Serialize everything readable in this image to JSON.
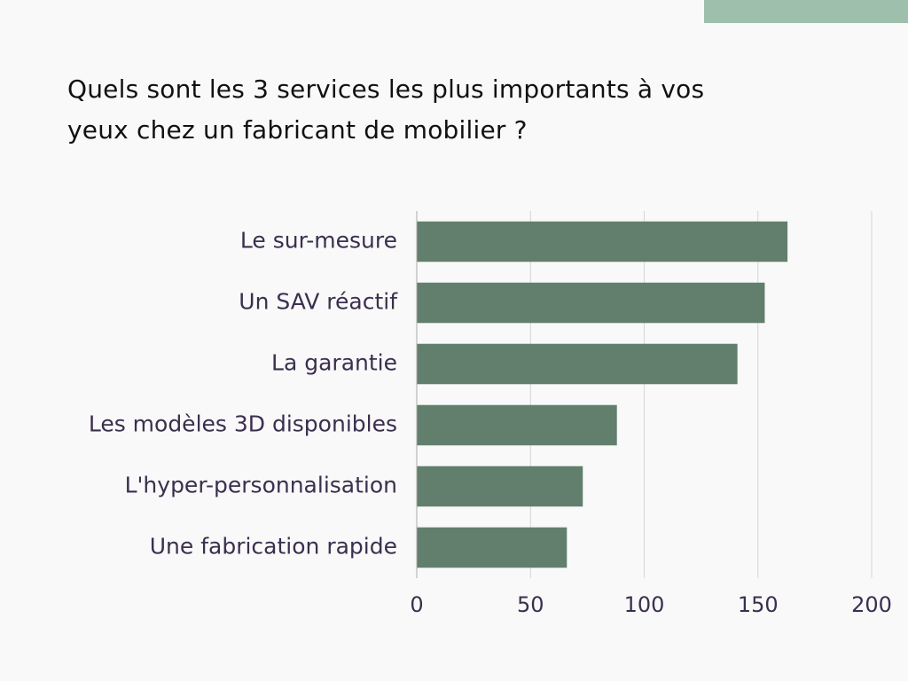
{
  "question": "Quels sont les 3 services les plus importants à vos yeux chez un fabricant de mobilier ?",
  "colors": {
    "accent": "#9fbfad",
    "bar": "#617f6c",
    "label": "#3b2f4e",
    "grid": "#d6d6d6",
    "axis": "#aaaaaa"
  },
  "chart_data": {
    "type": "bar",
    "orientation": "horizontal",
    "categories": [
      "Le sur-mesure",
      "Un SAV réactif",
      "La garantie",
      "Les modèles 3D disponibles",
      "L'hyper-personnalisation",
      "Une fabrication rapide"
    ],
    "values": [
      163,
      153,
      141,
      88,
      73,
      66
    ],
    "xlim": [
      0,
      200
    ],
    "xticks": [
      "0",
      "50",
      "100",
      "150",
      "200"
    ],
    "grid": true,
    "legend": "none"
  }
}
